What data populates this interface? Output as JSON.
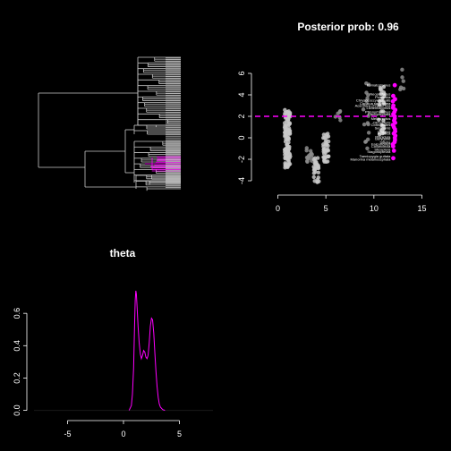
{
  "chart_data": [
    {
      "type": "tree",
      "title": "",
      "description_colors": {
        "branch": "#c8c8c8",
        "highlight": "#ff00ff"
      }
    },
    {
      "type": "scatter",
      "title": "Posterior prob: 0.96",
      "xlabel": "",
      "ylabel": "",
      "xlim": [
        -2,
        17
      ],
      "ylim": [
        -5,
        7.5
      ],
      "x_ticks": [
        0,
        5,
        10,
        15
      ],
      "y_ticks": [
        -4,
        -2,
        0,
        2,
        4,
        6
      ],
      "threshold_y": 2,
      "clusters": [
        {
          "x": 1,
          "y_min": -2.8,
          "y_max": 2.6,
          "n": 110
        },
        {
          "x": 3.3,
          "y_min": -2.4,
          "y_max": -0.8,
          "n": 14
        },
        {
          "x": 4,
          "y_min": -4.2,
          "y_max": -1.8,
          "n": 30
        },
        {
          "x": 5,
          "y_min": -2.3,
          "y_max": 0.4,
          "n": 40
        },
        {
          "x": 6.3,
          "y_min": 1.6,
          "y_max": 2.6,
          "n": 6
        },
        {
          "x": 9.2,
          "y_min": -1.5,
          "y_max": 5.5,
          "n": 16
        },
        {
          "x": 10.8,
          "y_min": 0.3,
          "y_max": 4.9,
          "n": 30
        },
        {
          "x": 12.8,
          "y_min": 4.5,
          "y_max": 6.7,
          "n": 6
        }
      ],
      "highlight_x": 12.1,
      "highlight_y": [
        4.9,
        3.9,
        3.6,
        3.4,
        3.0,
        2.8,
        2.6,
        2.4,
        2.2,
        2.0,
        1.8,
        1.6,
        1.4,
        1.2,
        1.0,
        0.8,
        0.6,
        0.4,
        0.2,
        0.0,
        -0.2,
        -0.4,
        -0.6,
        -0.8,
        -1.2,
        -1.9
      ],
      "labels": [
        {
          "text": "Pomatostomus",
          "y": 4.9
        },
        {
          "text": "Neopsittacus",
          "y": 4.1
        },
        {
          "text": "Psittacula",
          "y": 3.8
        },
        {
          "text": "Chrysococcyx basalis",
          "y": 3.5
        },
        {
          "text": "Cacatua sanguinea",
          "y": 3.2
        },
        {
          "text": "Acanthiza chrysorrhoa",
          "y": 3.0
        },
        {
          "text": "Lichenostomus",
          "y": 2.8
        },
        {
          "text": "Ptilonorhynchus",
          "y": 2.4
        },
        {
          "text": "Pachycephala",
          "y": 2.2
        },
        {
          "text": "Melithreptus",
          "y": 1.8
        },
        {
          "text": "Climacteris",
          "y": 1.4
        },
        {
          "text": "Cormobates",
          "y": 1.2
        },
        {
          "text": "Sericornis",
          "y": 0.9
        },
        {
          "text": "Malurus",
          "y": 0.6
        },
        {
          "text": "Petroica",
          "y": 0.4
        },
        {
          "text": "Rhipidura",
          "y": 0.1
        },
        {
          "text": "Gerygone",
          "y": -0.1
        },
        {
          "text": "Sittella",
          "y": -0.4
        },
        {
          "text": "Falcunculus",
          "y": -0.6
        },
        {
          "text": "Colluricincla",
          "y": -0.8
        },
        {
          "text": "Stizoptera",
          "y": -1.1
        },
        {
          "text": "Stagonopleura",
          "y": -1.3
        },
        {
          "text": "Taeniopygia guttata",
          "y": -1.7
        },
        {
          "text": "Manorina melanocephala",
          "y": -2.0
        }
      ],
      "colors": {
        "points": "#8c8c8c",
        "highlight": "#ff00ff",
        "threshold": "#ff00ff"
      }
    },
    {
      "type": "line",
      "title": "theta",
      "xlabel": "",
      "ylabel": "",
      "xlim": [
        -8,
        8
      ],
      "ylim": [
        -0.03,
        0.85
      ],
      "x_ticks": [
        -5,
        0,
        5
      ],
      "y_ticks": [
        0.0,
        0.2,
        0.4,
        0.6
      ],
      "series": [
        {
          "x": [
            0.5,
            0.7,
            0.8,
            0.9,
            1.0,
            1.05,
            1.1,
            1.15,
            1.2,
            1.3,
            1.4,
            1.5,
            1.6,
            1.7,
            1.8,
            1.9,
            2.0,
            2.1,
            2.2,
            2.3,
            2.4,
            2.5,
            2.6,
            2.7,
            2.8,
            2.9,
            3.0,
            3.1,
            3.2,
            3.3,
            3.5,
            3.7
          ],
          "y": [
            0.0,
            0.03,
            0.1,
            0.26,
            0.55,
            0.68,
            0.74,
            0.72,
            0.66,
            0.52,
            0.42,
            0.35,
            0.32,
            0.34,
            0.37,
            0.36,
            0.33,
            0.32,
            0.34,
            0.42,
            0.52,
            0.57,
            0.56,
            0.48,
            0.36,
            0.24,
            0.15,
            0.08,
            0.04,
            0.02,
            0.005,
            0.0
          ]
        }
      ],
      "colors": {
        "line": "#ff00ff"
      }
    }
  ]
}
